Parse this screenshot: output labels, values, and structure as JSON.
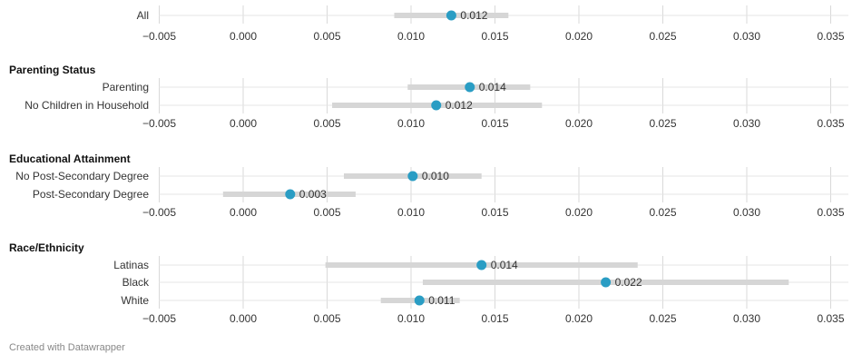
{
  "chart_data": {
    "type": "dot-range",
    "axis": {
      "min": -0.005,
      "max": 0.035,
      "ticks": [
        "−0.005",
        "0.000",
        "0.005",
        "0.010",
        "0.015",
        "0.020",
        "0.025",
        "0.030",
        "0.035"
      ],
      "tick_values": [
        -0.005,
        0.0,
        0.005,
        0.01,
        0.015,
        0.02,
        0.025,
        0.03,
        0.035
      ]
    },
    "groups": [
      {
        "header": "",
        "rows": [
          {
            "label": "All",
            "value": 0.0124,
            "low": 0.009,
            "high": 0.0158,
            "value_label": "0.012"
          }
        ]
      },
      {
        "header": "Parenting Status",
        "rows": [
          {
            "label": "Parenting",
            "value": 0.0135,
            "low": 0.0098,
            "high": 0.0171,
            "value_label": "0.014"
          },
          {
            "label": "No Children in Household",
            "value": 0.0115,
            "low": 0.0053,
            "high": 0.0178,
            "value_label": "0.012"
          }
        ]
      },
      {
        "header": "Educational Attainment",
        "rows": [
          {
            "label": "No Post-Secondary Degree",
            "value": 0.0101,
            "low": 0.006,
            "high": 0.0142,
            "value_label": "0.010"
          },
          {
            "label": "Post-Secondary Degree",
            "value": 0.0028,
            "low": -0.0012,
            "high": 0.0067,
            "value_label": "0.003"
          }
        ]
      },
      {
        "header": "Race/Ethnicity",
        "rows": [
          {
            "label": "Latinas",
            "value": 0.0142,
            "low": 0.0049,
            "high": 0.0235,
            "value_label": "0.014"
          },
          {
            "label": "Black",
            "value": 0.0216,
            "low": 0.0107,
            "high": 0.0325,
            "value_label": "0.022"
          },
          {
            "label": "White",
            "value": 0.0105,
            "low": 0.0082,
            "high": 0.0129,
            "value_label": "0.011"
          }
        ]
      }
    ],
    "colors": {
      "dot": "#2a9dc4",
      "range": "#d6d6d6",
      "grid": "#d9d9d9"
    }
  },
  "footer": {
    "credit": "Created with Datawrapper"
  }
}
